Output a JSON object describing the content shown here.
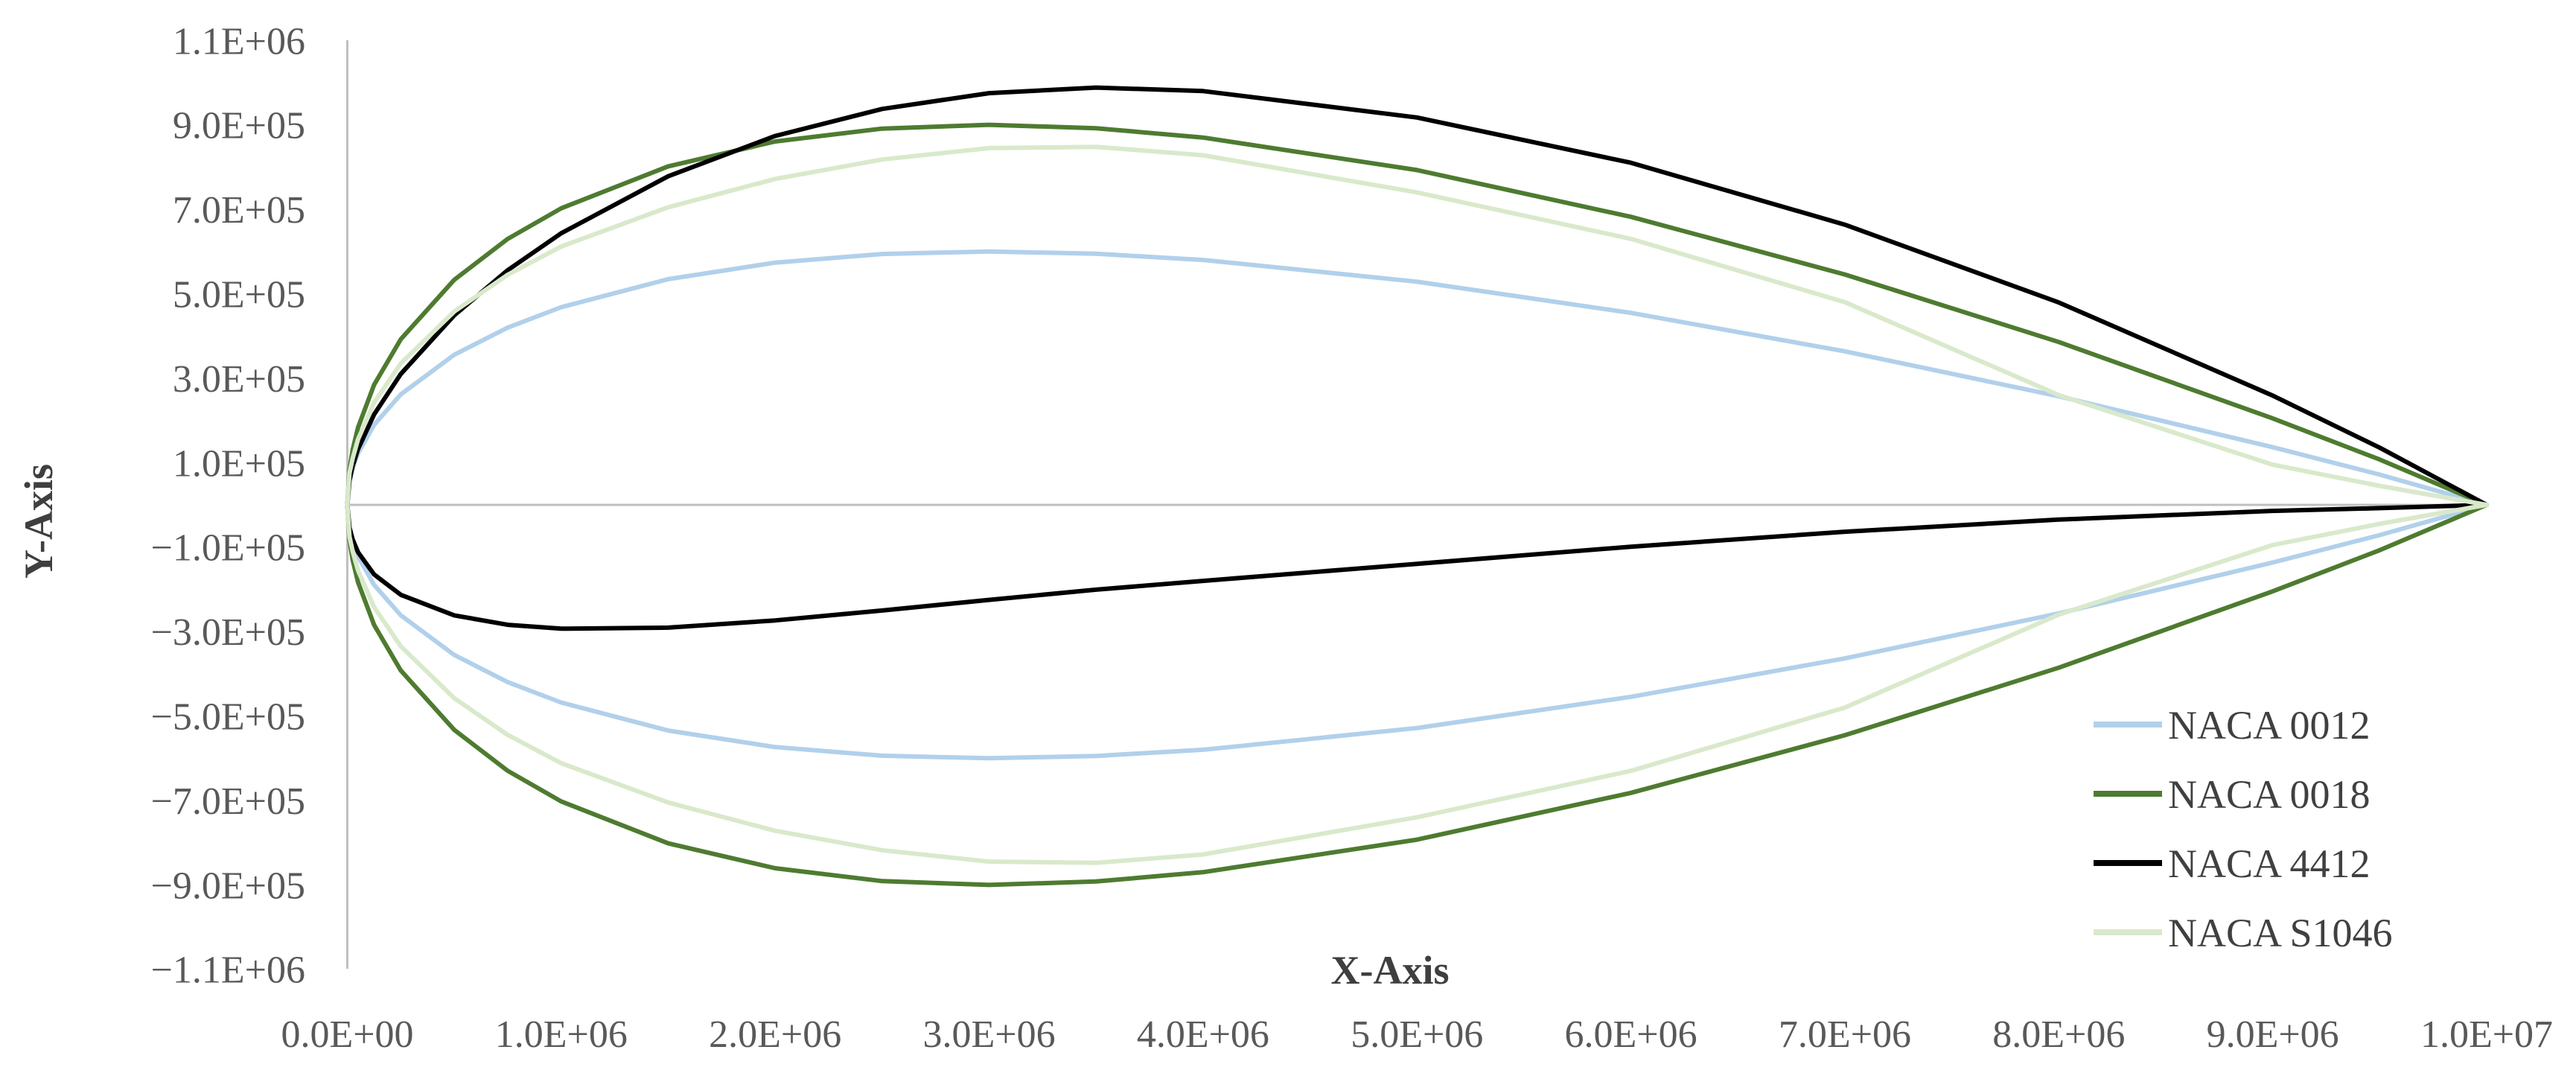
{
  "figure": {
    "background": "#FFFFFF",
    "description": "Comparison of four wind-turbine airfoil cross-section profiles"
  },
  "chart_data": {
    "type": "line",
    "title": "",
    "xlabel": "X-Axis",
    "ylabel": "Y-Axis",
    "xlim": [
      0,
      10000000
    ],
    "ylim": [
      -1100000,
      1100000
    ],
    "grid": false,
    "legend_position": "inside-lower-right",
    "axis_color": "#BFBFBF",
    "tick_label_color": "#595959",
    "axis_title_color": "#3F3F3F",
    "legend_text_color": "#404040",
    "x_ticks": [
      {
        "label": "0.0E+00",
        "value": 0
      },
      {
        "label": "1.0E+06",
        "value": 1000000
      },
      {
        "label": "2.0E+06",
        "value": 2000000
      },
      {
        "label": "3.0E+06",
        "value": 3000000
      },
      {
        "label": "4.0E+06",
        "value": 4000000
      },
      {
        "label": "5.0E+06",
        "value": 5000000
      },
      {
        "label": "6.0E+06",
        "value": 6000000
      },
      {
        "label": "7.0E+06",
        "value": 7000000
      },
      {
        "label": "8.0E+06",
        "value": 8000000
      },
      {
        "label": "9.0E+06",
        "value": 9000000
      },
      {
        "label": "1.0E+07",
        "value": 10000000
      }
    ],
    "y_ticks": [
      {
        "label": "1.1E+06",
        "value": 1100000
      },
      {
        "label": "9.0E+05",
        "value": 900000
      },
      {
        "label": "7.0E+05",
        "value": 700000
      },
      {
        "label": "5.0E+05",
        "value": 500000
      },
      {
        "label": "3.0E+05",
        "value": 300000
      },
      {
        "label": "1.0E+05",
        "value": 100000
      },
      {
        "label": "−1.0E+05",
        "value": -100000
      },
      {
        "label": "−3.0E+05",
        "value": -300000
      },
      {
        "label": "−5.0E+05",
        "value": -500000
      },
      {
        "label": "−7.0E+05",
        "value": -700000
      },
      {
        "label": "−9.0E+05",
        "value": -900000
      },
      {
        "label": "−1.1E+06",
        "value": -1100000
      }
    ],
    "x": [
      0,
      10000,
      25000,
      50000,
      125000,
      250000,
      500000,
      750000,
      1000000,
      1500000,
      2000000,
      2500000,
      3000000,
      3500000,
      4000000,
      5000000,
      6000000,
      7000000,
      8000000,
      9000000,
      9500000,
      10000000
    ],
    "series": [
      {
        "name": "NACA 0012",
        "color": "#B1D0EB",
        "upper": [
          0,
          55600,
          87200,
          122100,
          189400,
          261500,
          355500,
          420000,
          468300,
          534500,
          573700,
          594100,
          600100,
          594700,
          580000,
          528600,
          454700,
          363700,
          257200,
          136500,
          71600,
          0
        ],
        "lower": [
          0,
          -55600,
          -87200,
          -122100,
          -189400,
          -261500,
          -355500,
          -420000,
          -468300,
          -534500,
          -573700,
          -594100,
          -600100,
          -594700,
          -580000,
          -528600,
          -454700,
          -363700,
          -257200,
          -136500,
          -71600,
          0
        ]
      },
      {
        "name": "NACA 0018",
        "color": "#4E7B30",
        "upper": [
          0,
          83400,
          130800,
          183200,
          284100,
          392200,
          533200,
          630000,
          702400,
          801800,
          860600,
          891100,
          900100,
          892000,
          870000,
          792900,
          682100,
          545600,
          385800,
          204800,
          107400,
          0
        ],
        "lower": [
          0,
          -83400,
          -130800,
          -183200,
          -284100,
          -392200,
          -533200,
          -630000,
          -702400,
          -801800,
          -860600,
          -891100,
          -900100,
          -892000,
          -870000,
          -792900,
          -682100,
          -545600,
          -385800,
          -204800,
          -107400,
          0
        ]
      },
      {
        "name": "NACA 4412",
        "color": "#000000",
        "upper": [
          0,
          57600,
          92200,
          132100,
          214000,
          309900,
          449200,
          555900,
          643300,
          778300,
          873700,
          937800,
          975100,
          988400,
          980000,
          917500,
          810300,
          663700,
          479400,
          258700,
          135500,
          0
        ],
        "lower": [
          0,
          -53600,
          -82200,
          -112200,
          -164800,
          -213000,
          -261700,
          -284100,
          -293300,
          -290800,
          -273700,
          -250300,
          -225100,
          -200900,
          -180000,
          -139700,
          -99100,
          -63700,
          -35000,
          -14300,
          -7700,
          0
        ]
      },
      {
        "name": "NACA S1046",
        "color": "#D9E9CB",
        "upper": [
          0,
          75000,
          110000,
          155000,
          242000,
          335000,
          458000,
          545000,
          612000,
          705000,
          772000,
          818000,
          845000,
          848000,
          828000,
          740000,
          630000,
          480000,
          260000,
          95000,
          45000,
          0
        ],
        "lower": [
          0,
          -75000,
          -110000,
          -155000,
          -242000,
          -335000,
          -458000,
          -545000,
          -612000,
          -705000,
          -772000,
          -818000,
          -845000,
          -848000,
          -828000,
          -740000,
          -630000,
          -480000,
          -260000,
          -95000,
          -45000,
          0
        ]
      }
    ]
  }
}
